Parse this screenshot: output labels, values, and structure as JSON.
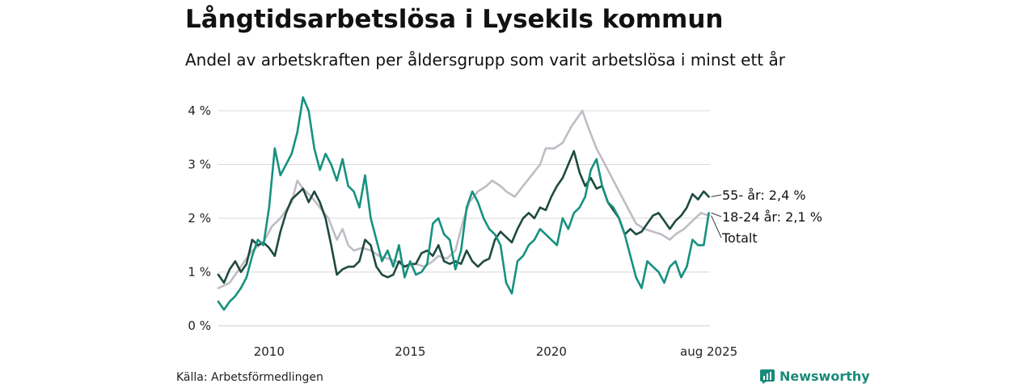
{
  "title": "Långtidsarbetslösa i Lysekils kommun",
  "subtitle": "Andel av arbetskraften per åldersgrupp som varit arbetslösa i minst ett år",
  "source": "Källa: Arbetsförmedlingen",
  "brand": "Newsworthy",
  "colors": {
    "totalt": "#c0bcc4",
    "age55": "#1e4a40",
    "age1824": "#16917f",
    "grid": "#d9d9d9",
    "brand": "#1a8a7a"
  },
  "chart_data": {
    "type": "line",
    "x_range": [
      2008.2,
      2025.62
    ],
    "ylim": [
      0,
      4.3
    ],
    "y_ticks": [
      0,
      1,
      2,
      3,
      4
    ],
    "y_tick_labels": [
      "0 %",
      "1 %",
      "2 %",
      "3 %",
      "4 %"
    ],
    "x_ticks": [
      2010,
      2015,
      2020,
      2025.58
    ],
    "x_tick_labels": [
      "2010",
      "2015",
      "2020",
      "aug 2025"
    ],
    "grid": true,
    "legend": "end-labels",
    "series": [
      {
        "key": "totalt",
        "name": "Totalt",
        "end_label": "Totalt",
        "points": [
          [
            2008.2,
            0.7
          ],
          [
            2008.6,
            0.8
          ],
          [
            2009.0,
            1.1
          ],
          [
            2009.4,
            1.4
          ],
          [
            2009.8,
            1.55
          ],
          [
            2010.1,
            1.85
          ],
          [
            2010.4,
            2.0
          ],
          [
            2010.8,
            2.3
          ],
          [
            2011.0,
            2.7
          ],
          [
            2011.2,
            2.55
          ],
          [
            2011.5,
            2.4
          ],
          [
            2011.8,
            2.2
          ],
          [
            2012.1,
            2.0
          ],
          [
            2012.4,
            1.6
          ],
          [
            2012.6,
            1.8
          ],
          [
            2012.8,
            1.5
          ],
          [
            2013.0,
            1.4
          ],
          [
            2013.3,
            1.45
          ],
          [
            2013.6,
            1.4
          ],
          [
            2013.9,
            1.3
          ],
          [
            2014.2,
            1.25
          ],
          [
            2014.5,
            1.2
          ],
          [
            2014.8,
            1.1
          ],
          [
            2015.2,
            1.15
          ],
          [
            2015.5,
            1.1
          ],
          [
            2015.8,
            1.2
          ],
          [
            2016.0,
            1.3
          ],
          [
            2016.3,
            1.25
          ],
          [
            2016.6,
            1.4
          ],
          [
            2016.9,
            2.0
          ],
          [
            2017.1,
            2.3
          ],
          [
            2017.4,
            2.5
          ],
          [
            2017.7,
            2.6
          ],
          [
            2017.9,
            2.7
          ],
          [
            2018.2,
            2.6
          ],
          [
            2018.4,
            2.5
          ],
          [
            2018.7,
            2.4
          ],
          [
            2019.0,
            2.6
          ],
          [
            2019.3,
            2.8
          ],
          [
            2019.6,
            3.0
          ],
          [
            2019.8,
            3.3
          ],
          [
            2020.1,
            3.3
          ],
          [
            2020.4,
            3.4
          ],
          [
            2020.7,
            3.7
          ],
          [
            2020.9,
            3.85
          ],
          [
            2021.1,
            4.0
          ],
          [
            2021.3,
            3.7
          ],
          [
            2021.6,
            3.3
          ],
          [
            2021.9,
            3.0
          ],
          [
            2022.2,
            2.7
          ],
          [
            2022.5,
            2.4
          ],
          [
            2022.8,
            2.1
          ],
          [
            2023.0,
            1.9
          ],
          [
            2023.3,
            1.8
          ],
          [
            2023.6,
            1.75
          ],
          [
            2023.9,
            1.7
          ],
          [
            2024.2,
            1.6
          ],
          [
            2024.4,
            1.7
          ],
          [
            2024.7,
            1.8
          ],
          [
            2025.0,
            1.95
          ],
          [
            2025.3,
            2.1
          ],
          [
            2025.58,
            2.05
          ]
        ]
      },
      {
        "key": "age55",
        "name": "55- år",
        "end_label": "55- år: 2,4 %",
        "points": [
          [
            2008.2,
            0.95
          ],
          [
            2008.4,
            0.8
          ],
          [
            2008.6,
            1.05
          ],
          [
            2008.8,
            1.2
          ],
          [
            2009.0,
            1.0
          ],
          [
            2009.2,
            1.15
          ],
          [
            2009.4,
            1.6
          ],
          [
            2009.6,
            1.5
          ],
          [
            2009.8,
            1.55
          ],
          [
            2010.0,
            1.45
          ],
          [
            2010.2,
            1.3
          ],
          [
            2010.4,
            1.75
          ],
          [
            2010.6,
            2.1
          ],
          [
            2010.8,
            2.35
          ],
          [
            2011.0,
            2.45
          ],
          [
            2011.2,
            2.55
          ],
          [
            2011.4,
            2.3
          ],
          [
            2011.6,
            2.5
          ],
          [
            2011.8,
            2.3
          ],
          [
            2012.0,
            2.0
          ],
          [
            2012.2,
            1.5
          ],
          [
            2012.4,
            0.95
          ],
          [
            2012.6,
            1.05
          ],
          [
            2012.8,
            1.1
          ],
          [
            2013.0,
            1.1
          ],
          [
            2013.2,
            1.2
          ],
          [
            2013.4,
            1.6
          ],
          [
            2013.6,
            1.5
          ],
          [
            2013.8,
            1.1
          ],
          [
            2014.0,
            0.95
          ],
          [
            2014.2,
            0.9
          ],
          [
            2014.4,
            0.95
          ],
          [
            2014.6,
            1.2
          ],
          [
            2014.8,
            1.1
          ],
          [
            2015.0,
            1.15
          ],
          [
            2015.2,
            1.15
          ],
          [
            2015.4,
            1.35
          ],
          [
            2015.6,
            1.4
          ],
          [
            2015.8,
            1.3
          ],
          [
            2016.0,
            1.5
          ],
          [
            2016.2,
            1.2
          ],
          [
            2016.4,
            1.15
          ],
          [
            2016.6,
            1.2
          ],
          [
            2016.8,
            1.15
          ],
          [
            2017.0,
            1.4
          ],
          [
            2017.2,
            1.2
          ],
          [
            2017.4,
            1.1
          ],
          [
            2017.6,
            1.2
          ],
          [
            2017.8,
            1.25
          ],
          [
            2018.0,
            1.6
          ],
          [
            2018.2,
            1.75
          ],
          [
            2018.4,
            1.65
          ],
          [
            2018.6,
            1.55
          ],
          [
            2018.8,
            1.8
          ],
          [
            2019.0,
            2.0
          ],
          [
            2019.2,
            2.1
          ],
          [
            2019.4,
            2.0
          ],
          [
            2019.6,
            2.2
          ],
          [
            2019.8,
            2.15
          ],
          [
            2020.0,
            2.4
          ],
          [
            2020.2,
            2.6
          ],
          [
            2020.4,
            2.75
          ],
          [
            2020.6,
            3.0
          ],
          [
            2020.8,
            3.25
          ],
          [
            2021.0,
            2.85
          ],
          [
            2021.2,
            2.6
          ],
          [
            2021.4,
            2.75
          ],
          [
            2021.6,
            2.55
          ],
          [
            2021.8,
            2.6
          ],
          [
            2022.0,
            2.3
          ],
          [
            2022.2,
            2.15
          ],
          [
            2022.4,
            2.0
          ],
          [
            2022.6,
            1.7
          ],
          [
            2022.8,
            1.8
          ],
          [
            2023.0,
            1.7
          ],
          [
            2023.2,
            1.75
          ],
          [
            2023.4,
            1.9
          ],
          [
            2023.6,
            2.05
          ],
          [
            2023.8,
            2.1
          ],
          [
            2024.0,
            1.95
          ],
          [
            2024.2,
            1.8
          ],
          [
            2024.4,
            1.95
          ],
          [
            2024.6,
            2.05
          ],
          [
            2024.8,
            2.2
          ],
          [
            2025.0,
            2.45
          ],
          [
            2025.2,
            2.35
          ],
          [
            2025.4,
            2.5
          ],
          [
            2025.58,
            2.4
          ]
        ]
      },
      {
        "key": "age1824",
        "name": "18-24 år",
        "end_label": "18-24 år: 2,1 %",
        "points": [
          [
            2008.2,
            0.45
          ],
          [
            2008.4,
            0.3
          ],
          [
            2008.6,
            0.45
          ],
          [
            2008.8,
            0.55
          ],
          [
            2009.0,
            0.7
          ],
          [
            2009.2,
            0.9
          ],
          [
            2009.4,
            1.3
          ],
          [
            2009.6,
            1.6
          ],
          [
            2009.8,
            1.5
          ],
          [
            2010.0,
            2.2
          ],
          [
            2010.2,
            3.3
          ],
          [
            2010.4,
            2.8
          ],
          [
            2010.6,
            3.0
          ],
          [
            2010.8,
            3.2
          ],
          [
            2011.0,
            3.6
          ],
          [
            2011.2,
            4.25
          ],
          [
            2011.4,
            4.0
          ],
          [
            2011.6,
            3.3
          ],
          [
            2011.8,
            2.9
          ],
          [
            2012.0,
            3.2
          ],
          [
            2012.2,
            3.0
          ],
          [
            2012.4,
            2.7
          ],
          [
            2012.6,
            3.1
          ],
          [
            2012.8,
            2.6
          ],
          [
            2013.0,
            2.5
          ],
          [
            2013.2,
            2.2
          ],
          [
            2013.4,
            2.8
          ],
          [
            2013.6,
            2.0
          ],
          [
            2013.8,
            1.6
          ],
          [
            2014.0,
            1.2
          ],
          [
            2014.2,
            1.4
          ],
          [
            2014.4,
            1.1
          ],
          [
            2014.6,
            1.5
          ],
          [
            2014.8,
            0.9
          ],
          [
            2015.0,
            1.2
          ],
          [
            2015.2,
            0.95
          ],
          [
            2015.4,
            1.0
          ],
          [
            2015.6,
            1.15
          ],
          [
            2015.8,
            1.9
          ],
          [
            2016.0,
            2.0
          ],
          [
            2016.2,
            1.7
          ],
          [
            2016.4,
            1.6
          ],
          [
            2016.6,
            1.05
          ],
          [
            2016.8,
            1.4
          ],
          [
            2017.0,
            2.2
          ],
          [
            2017.2,
            2.5
          ],
          [
            2017.4,
            2.3
          ],
          [
            2017.6,
            2.0
          ],
          [
            2017.8,
            1.8
          ],
          [
            2018.0,
            1.7
          ],
          [
            2018.2,
            1.5
          ],
          [
            2018.4,
            0.8
          ],
          [
            2018.6,
            0.6
          ],
          [
            2018.8,
            1.2
          ],
          [
            2019.0,
            1.3
          ],
          [
            2019.2,
            1.5
          ],
          [
            2019.4,
            1.6
          ],
          [
            2019.6,
            1.8
          ],
          [
            2019.8,
            1.7
          ],
          [
            2020.0,
            1.6
          ],
          [
            2020.2,
            1.5
          ],
          [
            2020.4,
            2.0
          ],
          [
            2020.6,
            1.8
          ],
          [
            2020.8,
            2.1
          ],
          [
            2021.0,
            2.2
          ],
          [
            2021.2,
            2.4
          ],
          [
            2021.4,
            2.9
          ],
          [
            2021.6,
            3.1
          ],
          [
            2021.8,
            2.6
          ],
          [
            2022.0,
            2.3
          ],
          [
            2022.2,
            2.2
          ],
          [
            2022.4,
            2.0
          ],
          [
            2022.6,
            1.7
          ],
          [
            2022.8,
            1.3
          ],
          [
            2023.0,
            0.9
          ],
          [
            2023.2,
            0.7
          ],
          [
            2023.4,
            1.2
          ],
          [
            2023.6,
            1.1
          ],
          [
            2023.8,
            1.0
          ],
          [
            2024.0,
            0.8
          ],
          [
            2024.2,
            1.1
          ],
          [
            2024.4,
            1.2
          ],
          [
            2024.6,
            0.9
          ],
          [
            2024.8,
            1.1
          ],
          [
            2025.0,
            1.6
          ],
          [
            2025.2,
            1.5
          ],
          [
            2025.4,
            1.5
          ],
          [
            2025.58,
            2.1
          ]
        ]
      }
    ]
  }
}
